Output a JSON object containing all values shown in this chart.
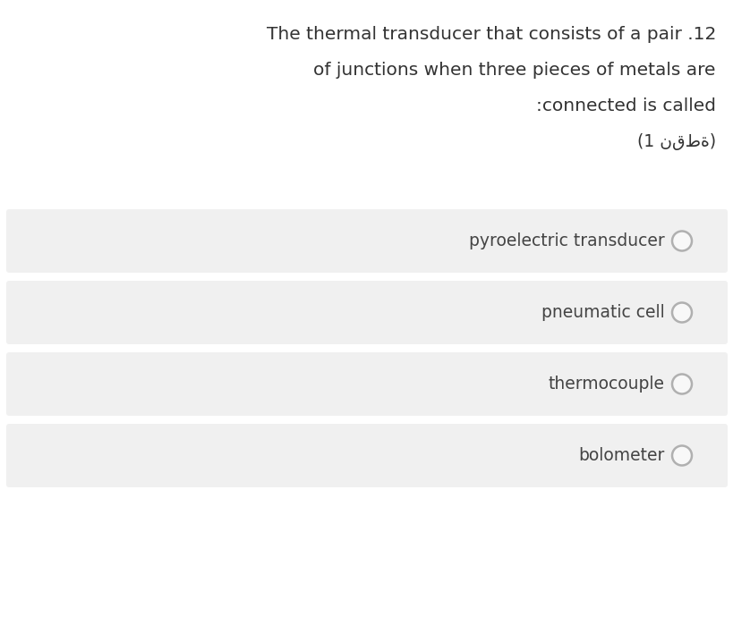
{
  "background_color": "#ffffff",
  "question_lines": [
    "The thermal transducer that consists of a pair .12",
    "of junctions when three pieces of metals are",
    ":connected is called",
    "(1 نقطة)"
  ],
  "options": [
    "pyroelectric transducer",
    "pneumatic cell",
    "thermocouple",
    "bolometer"
  ],
  "option_bg_color": "#f0f0f0",
  "option_text_color": "#444444",
  "question_text_color": "#333333",
  "circle_edge_color": "#b0b0b0",
  "circle_fill_color": "#f8f8f8",
  "font_size_question": 14.5,
  "font_size_option": 13.5,
  "font_size_arabic": 13.5,
  "fig_width": 8.2,
  "fig_height": 6.99,
  "dpi": 100
}
